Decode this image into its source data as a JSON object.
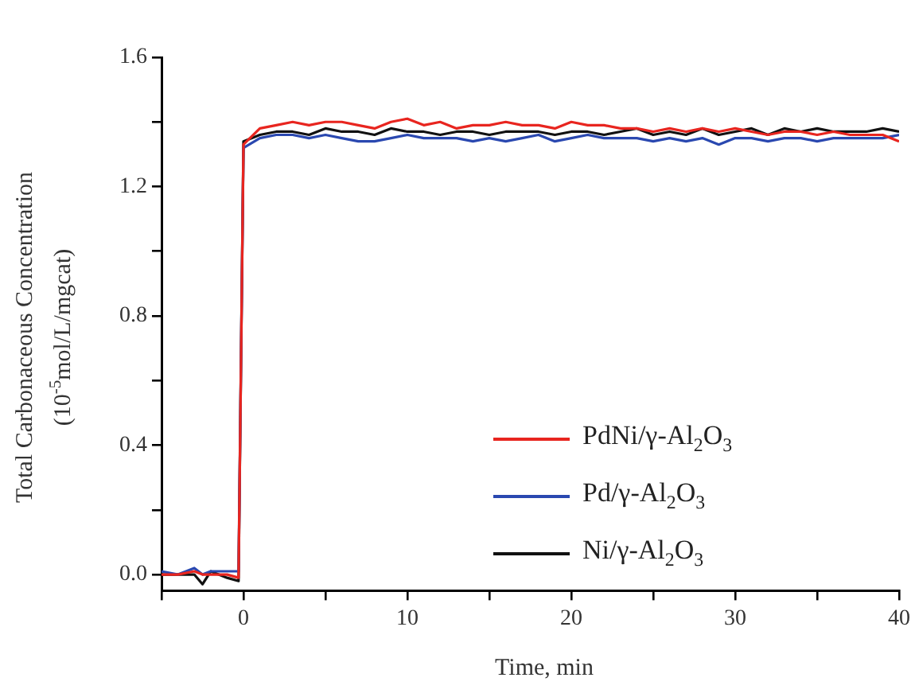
{
  "chart_data": {
    "type": "line",
    "xlabel": "Time, min",
    "ylabel": "Total Carbonaceous Concentration\n(10$^{-5}$mol/L/mgcat)",
    "x": [
      -5,
      -4,
      -3,
      -2.5,
      -2,
      -1,
      -0.3,
      0,
      1,
      2,
      3,
      4,
      5,
      6,
      7,
      8,
      9,
      10,
      11,
      12,
      13,
      14,
      15,
      16,
      17,
      18,
      19,
      20,
      21,
      22,
      23,
      24,
      25,
      26,
      27,
      28,
      29,
      30,
      31,
      32,
      33,
      34,
      35,
      36,
      37,
      38,
      39,
      40
    ],
    "series": [
      {
        "name": "PdNi/γ-Al$_{2}$O$_{3}$",
        "color": "#e8251f",
        "values": [
          0.0,
          0.0,
          0.01,
          0.0,
          0.0,
          0.0,
          -0.01,
          1.33,
          1.38,
          1.39,
          1.4,
          1.39,
          1.4,
          1.4,
          1.39,
          1.38,
          1.4,
          1.41,
          1.39,
          1.4,
          1.38,
          1.39,
          1.39,
          1.4,
          1.39,
          1.39,
          1.38,
          1.4,
          1.39,
          1.39,
          1.38,
          1.38,
          1.37,
          1.38,
          1.37,
          1.38,
          1.37,
          1.38,
          1.37,
          1.36,
          1.37,
          1.37,
          1.36,
          1.37,
          1.36,
          1.36,
          1.36,
          1.34
        ]
      },
      {
        "name": "Pd/γ-Al$_{2}$O$_{3}$",
        "color": "#2a48b0",
        "values": [
          0.01,
          0.0,
          0.02,
          0.0,
          0.01,
          0.01,
          0.01,
          1.32,
          1.35,
          1.36,
          1.36,
          1.35,
          1.36,
          1.35,
          1.34,
          1.34,
          1.35,
          1.36,
          1.35,
          1.35,
          1.35,
          1.34,
          1.35,
          1.34,
          1.35,
          1.36,
          1.34,
          1.35,
          1.36,
          1.35,
          1.35,
          1.35,
          1.34,
          1.35,
          1.34,
          1.35,
          1.33,
          1.35,
          1.35,
          1.34,
          1.35,
          1.35,
          1.34,
          1.35,
          1.35,
          1.35,
          1.35,
          1.36
        ]
      },
      {
        "name": "Ni/γ-Al$_{2}$O$_{3}$",
        "color": "#111111",
        "values": [
          0.0,
          0.0,
          0.0,
          -0.03,
          0.01,
          -0.01,
          -0.02,
          1.34,
          1.36,
          1.37,
          1.37,
          1.36,
          1.38,
          1.37,
          1.37,
          1.36,
          1.38,
          1.37,
          1.37,
          1.36,
          1.37,
          1.37,
          1.36,
          1.37,
          1.37,
          1.37,
          1.36,
          1.37,
          1.37,
          1.36,
          1.37,
          1.38,
          1.36,
          1.37,
          1.36,
          1.38,
          1.36,
          1.37,
          1.38,
          1.36,
          1.38,
          1.37,
          1.38,
          1.37,
          1.37,
          1.37,
          1.38,
          1.37
        ]
      }
    ],
    "xlim": [
      -5,
      40
    ],
    "xticks": [
      {
        "value": -5,
        "label": null
      },
      0,
      {
        "value": 5,
        "label": null
      },
      10,
      {
        "value": 15,
        "label": null
      },
      20,
      {
        "value": 25,
        "label": null
      },
      30,
      {
        "value": 35,
        "label": null
      },
      40
    ],
    "ylim": [
      -0.05,
      1.6
    ],
    "yticks": [
      {
        "value": 0,
        "label": "0.0"
      },
      {
        "value": 0.2,
        "label": null
      },
      0.4,
      {
        "value": 0.6,
        "label": null
      },
      0.8,
      {
        "value": 1.0,
        "label": null
      },
      1.2,
      {
        "value": 1.4,
        "label": null
      },
      1.6
    ],
    "grid": false,
    "legend": "right",
    "marker": "none",
    "line_style": "solid"
  }
}
